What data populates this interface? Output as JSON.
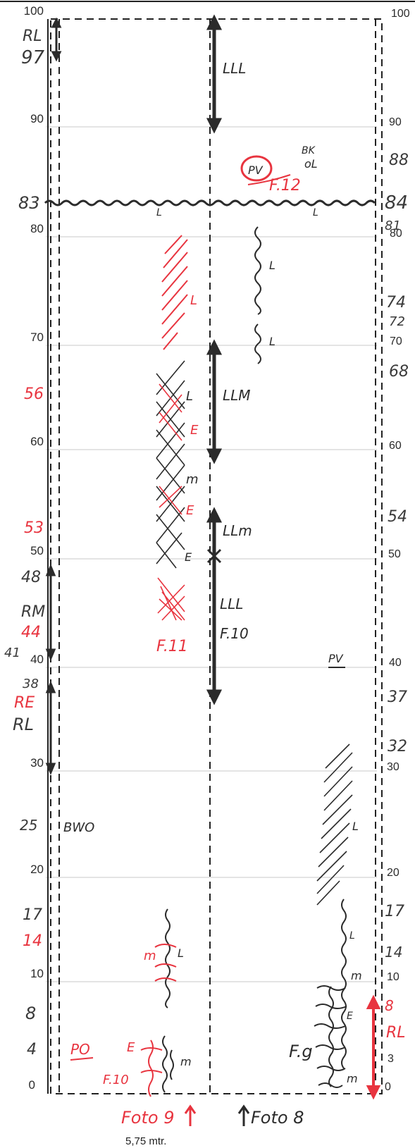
{
  "scale_left": [
    "100",
    "90",
    "80",
    "70",
    "60",
    "50",
    "40",
    "30",
    "20",
    "10",
    "0"
  ],
  "scale_right": [
    "100",
    "90",
    "80",
    "70",
    "60",
    "50",
    "40",
    "30",
    "20",
    "10",
    "3",
    "0"
  ],
  "left_notes_black": [
    "RL",
    "97",
    "83",
    "48",
    "RM",
    "41",
    "38",
    "RL",
    "25",
    "17",
    "8",
    "4"
  ],
  "left_notes_red": [
    "56",
    "53",
    "44",
    "RE",
    "14"
  ],
  "right_notes_black": [
    "88",
    "84",
    "81",
    "74",
    "72",
    "68",
    "54",
    "37",
    "32",
    "17",
    "14"
  ],
  "right_notes_red": [
    "8",
    "RL"
  ],
  "middle_labels": {
    "lll_top": "LLL",
    "llm_upper": "LLM",
    "llm_mid": "LLm",
    "lll_lower": "LLL",
    "f10": "F.10",
    "pv_top": "PV",
    "bk": "BK",
    "ol": "oL",
    "f12": "F.12",
    "l_a": "L",
    "l_b": "L",
    "l_right1": "L",
    "l_right2": "L",
    "f11": "F.11",
    "hatch_l": "L",
    "xhatch_l": "L",
    "xhatch_e1": "E",
    "xhatch_m": "m",
    "xhatch_e2": "E",
    "xhatch_e3": "E",
    "pv_right": "PV",
    "bwo": "BWO",
    "right_hatch_l": "L",
    "right_l2": "L",
    "right_m1": "m",
    "right_e": "E",
    "right_m2": "m",
    "fg": "F.g",
    "left_m": "m",
    "left_l": "L",
    "po": "PO",
    "bottom_e": "E",
    "bottom_m": "m",
    "bottom_f10": "F.10"
  },
  "footer": {
    "foto9": "Foto 9",
    "foto8": "Foto 8",
    "mtr": "5,75  mtr."
  },
  "colors": {
    "red": "#e8343f",
    "dark": "#2b2b2b",
    "grid": "#c8c8c8"
  }
}
